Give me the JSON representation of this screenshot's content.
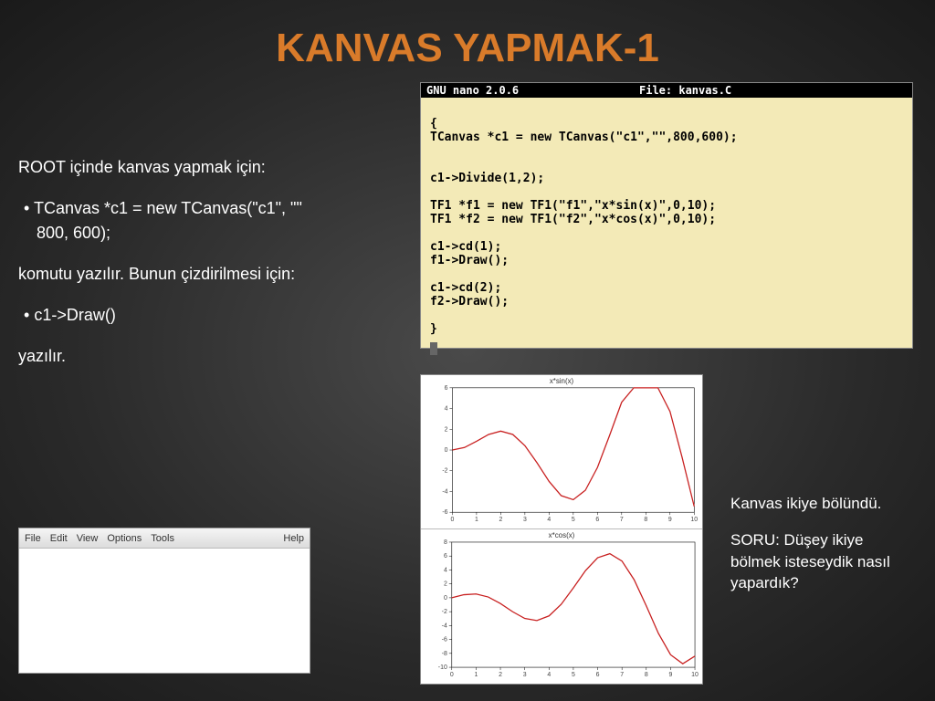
{
  "title": {
    "text": "KANVAS YAPMAK-1",
    "color": "#d97b2a"
  },
  "left": {
    "line1": "ROOT içinde  kanvas yapmak için:",
    "bullet1a": " TCanvas *c1 = new TCanvas(\"c1\", \"\"",
    "bullet1b": "800, 600);",
    "line2": "komutu yazılır. Bunun çizdirilmesi için:",
    "bullet2": "c1->Draw()",
    "line3": "yazılır."
  },
  "nano": {
    "left": "  GNU nano 2.0.6",
    "right": "File: kanvas.C",
    "code": "\n{\nTCanvas *c1 = new TCanvas(\"c1\",\"\",800,600);\n\n\nc1->Divide(1,2);\n\nTF1 *f1 = new TF1(\"f1\",\"x*sin(x)\",0,10);\nTF1 *f2 = new TF1(\"f2\",\"x*cos(x)\",0,10);\n\nc1->cd(1);\nf1->Draw();\n\nc1->cd(2);\nf2->Draw();\n\n}\n"
  },
  "menu": {
    "items": [
      "File",
      "Edit",
      "View",
      "Options",
      "Tools"
    ],
    "help": "Help"
  },
  "plots": {
    "top": {
      "title": "x*sin(x)",
      "line_color": "#c82020",
      "bg": "#ffffff",
      "xlim": [
        0,
        10
      ],
      "ylim": [
        -6,
        6
      ],
      "xticks": [
        0,
        1,
        2,
        3,
        4,
        5,
        6,
        7,
        8,
        9,
        10
      ],
      "yticks": [
        -6,
        -4,
        -2,
        0,
        2,
        4,
        6
      ],
      "points": [
        [
          0,
          0
        ],
        [
          0.5,
          0.24
        ],
        [
          1,
          0.84
        ],
        [
          1.5,
          1.5
        ],
        [
          2,
          1.82
        ],
        [
          2.5,
          1.5
        ],
        [
          3,
          0.42
        ],
        [
          3.5,
          -1.23
        ],
        [
          4,
          -3.03
        ],
        [
          4.5,
          -4.4
        ],
        [
          5,
          -4.79
        ],
        [
          5.5,
          -3.88
        ],
        [
          6,
          -1.68
        ],
        [
          6.5,
          1.4
        ],
        [
          7,
          4.6
        ],
        [
          7.5,
          7.03
        ],
        [
          8,
          7.91
        ],
        [
          8.5,
          6.79
        ],
        [
          9,
          3.71
        ],
        [
          9.5,
          -0.71
        ],
        [
          10,
          -5.44
        ]
      ]
    },
    "bottom": {
      "title": "x*cos(x)",
      "line_color": "#c82020",
      "bg": "#ffffff",
      "xlim": [
        0,
        10
      ],
      "ylim": [
        -10,
        8
      ],
      "xticks": [
        0,
        1,
        2,
        3,
        4,
        5,
        6,
        7,
        8,
        9,
        10
      ],
      "yticks": [
        -10,
        -8,
        -6,
        -4,
        -2,
        0,
        2,
        4,
        6,
        8
      ],
      "points": [
        [
          0,
          0
        ],
        [
          0.5,
          0.44
        ],
        [
          1,
          0.54
        ],
        [
          1.5,
          0.11
        ],
        [
          2,
          -0.83
        ],
        [
          2.5,
          -2.0
        ],
        [
          3,
          -2.97
        ],
        [
          3.5,
          -3.28
        ],
        [
          4,
          -2.61
        ],
        [
          4.5,
          -0.95
        ],
        [
          5,
          1.42
        ],
        [
          5.5,
          3.9
        ],
        [
          6,
          5.76
        ],
        [
          6.5,
          6.34
        ],
        [
          7,
          5.28
        ],
        [
          7.5,
          2.6
        ],
        [
          8,
          -1.16
        ],
        [
          8.5,
          -5.13
        ],
        [
          9,
          -8.2
        ],
        [
          9.5,
          -9.49
        ],
        [
          10,
          -8.39
        ]
      ]
    }
  },
  "right": {
    "p1": "Kanvas ikiye bölündü.",
    "p2": "SORU: Düşey ikiye bölmek isteseydik nasıl yapardık?"
  }
}
